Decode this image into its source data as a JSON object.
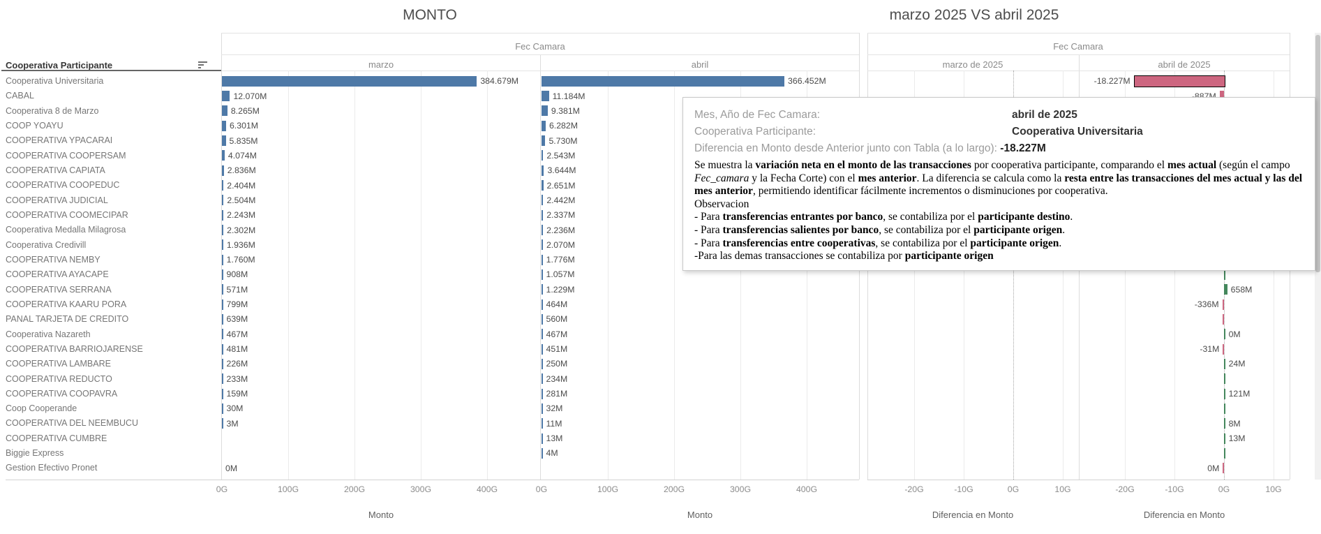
{
  "titles": {
    "left": "MONTO",
    "right": "marzo 2025 VS abril 2025"
  },
  "left_panel": {
    "group_header": "Fec Camara",
    "row_header": "Cooperativa Participante",
    "columns": [
      "marzo",
      "abril"
    ],
    "axis": {
      "ticks": [
        "0G",
        "100G",
        "200G",
        "300G",
        "400G"
      ],
      "title": "Monto"
    }
  },
  "right_panel": {
    "group_header": "Fec Camara",
    "columns": [
      "marzo de 2025",
      "abril de 2025"
    ],
    "axis": {
      "ticks": [
        "-20G",
        "-10G",
        "0G",
        "10G"
      ],
      "title": "Diferencia en Monto"
    }
  },
  "colors": {
    "bar_blue": "#4e79a7",
    "diff_positive_green": "#44875c",
    "diff_negative_pink": "#cd6680",
    "selected_border": "#000000"
  },
  "chart_data": {
    "type": "bar",
    "units": "G (thousands of millions), labels shown in M with dot as thousands separator",
    "left_axis_range_G": [
      0,
      480
    ],
    "diff_axis_range_G": [
      -30,
      13
    ],
    "rows": [
      {
        "name": "Cooperativa Universitaria",
        "marzo": 384.679,
        "marzo_label": "384.679M",
        "abril": 366.452,
        "abril_label": "366.452M",
        "diff": -18.227,
        "diff_label": "-18.227M",
        "diff_dir": "down",
        "selected": true
      },
      {
        "name": "CABAL",
        "marzo": 12.07,
        "marzo_label": "12.070M",
        "abril": 11.184,
        "abril_label": "11.184M",
        "diff": -0.887,
        "diff_label": "-887M",
        "diff_dir": "down"
      },
      {
        "name": "Cooperativa 8 de Marzo",
        "marzo": 8.265,
        "marzo_label": "8.265M",
        "abril": 9.381,
        "abril_label": "9.381M",
        "diff": null
      },
      {
        "name": "COOP YOAYU",
        "marzo": 6.301,
        "marzo_label": "6.301M",
        "abril": 6.282,
        "abril_label": "6.282M",
        "diff": null
      },
      {
        "name": "COOPERATIVA YPACARAI",
        "marzo": 5.835,
        "marzo_label": "5.835M",
        "abril": 5.73,
        "abril_label": "5.730M",
        "diff": null
      },
      {
        "name": "COOPERATIVA COOPERSAM",
        "marzo": 4.074,
        "marzo_label": "4.074M",
        "abril": 2.543,
        "abril_label": "2.543M",
        "diff": null
      },
      {
        "name": "COOPERATIVA CAPIATA",
        "marzo": 2.836,
        "marzo_label": "2.836M",
        "abril": 3.644,
        "abril_label": "3.644M",
        "diff": null
      },
      {
        "name": "COOPERATIVA COOPEDUC",
        "marzo": 2.404,
        "marzo_label": "2.404M",
        "abril": 2.651,
        "abril_label": "2.651M",
        "diff": null
      },
      {
        "name": "COOPERATIVA JUDICIAL",
        "marzo": 2.504,
        "marzo_label": "2.504M",
        "abril": 2.442,
        "abril_label": "2.442M",
        "diff": null
      },
      {
        "name": "COOPERATIVA COOMECIPAR",
        "marzo": 2.243,
        "marzo_label": "2.243M",
        "abril": 2.337,
        "abril_label": "2.337M",
        "diff": null
      },
      {
        "name": "Cooperativa Medalla Milagrosa",
        "marzo": 2.302,
        "marzo_label": "2.302M",
        "abril": 2.236,
        "abril_label": "2.236M",
        "diff": null
      },
      {
        "name": "Cooperativa Credivill",
        "marzo": 1.936,
        "marzo_label": "1.936M",
        "abril": 2.07,
        "abril_label": "2.070M",
        "diff": null
      },
      {
        "name": "COOPERATIVA NEMBY",
        "marzo": 1.76,
        "marzo_label": "1.760M",
        "abril": 1.776,
        "abril_label": "1.776M",
        "diff": null
      },
      {
        "name": "COOPERATIVA AYACAPE",
        "marzo": 0.908,
        "marzo_label": "908M",
        "abril": 1.057,
        "abril_label": "1.057M",
        "diff": 0.149,
        "diff_label": null,
        "diff_dir": "up"
      },
      {
        "name": "COOPERATIVA SERRANA",
        "marzo": 0.571,
        "marzo_label": "571M",
        "abril": 1.229,
        "abril_label": "1.229M",
        "diff": 0.658,
        "diff_label": "658M",
        "diff_dir": "up"
      },
      {
        "name": "COOPERATIVA KAARU PORA",
        "marzo": 0.799,
        "marzo_label": "799M",
        "abril": 0.464,
        "abril_label": "464M",
        "diff": -0.336,
        "diff_label": "-336M",
        "diff_dir": "down"
      },
      {
        "name": "PANAL TARJETA DE CREDITO",
        "marzo": 0.639,
        "marzo_label": "639M",
        "abril": 0.56,
        "abril_label": "560M",
        "diff": -0.079,
        "diff_label": null,
        "diff_dir": "down"
      },
      {
        "name": "Cooperativa Nazareth",
        "marzo": 0.467,
        "marzo_label": "467M",
        "abril": 0.467,
        "abril_label": "467M",
        "diff": 0,
        "diff_label": "0M",
        "diff_dir": "up"
      },
      {
        "name": "COOPERATIVA BARRIOJARENSE",
        "marzo": 0.481,
        "marzo_label": "481M",
        "abril": 0.451,
        "abril_label": "451M",
        "diff": -0.031,
        "diff_label": "-31M",
        "diff_dir": "down"
      },
      {
        "name": "COOPERATIVA LAMBARE",
        "marzo": 0.226,
        "marzo_label": "226M",
        "abril": 0.25,
        "abril_label": "250M",
        "diff": 0.024,
        "diff_label": "24M",
        "diff_dir": "up"
      },
      {
        "name": "COOPERATIVA REDUCTO",
        "marzo": 0.233,
        "marzo_label": "233M",
        "abril": 0.234,
        "abril_label": "234M",
        "diff": 0.001,
        "diff_label": null,
        "diff_dir": "up"
      },
      {
        "name": "COOPERATIVA COOPAVRA",
        "marzo": 0.159,
        "marzo_label": "159M",
        "abril": 0.281,
        "abril_label": "281M",
        "diff": 0.121,
        "diff_label": "121M",
        "diff_dir": "up"
      },
      {
        "name": "Coop Cooperande",
        "marzo": 0.03,
        "marzo_label": "30M",
        "abril": 0.032,
        "abril_label": "32M",
        "diff": 0.002,
        "diff_label": null,
        "diff_dir": "up"
      },
      {
        "name": "COOPERATIVA DEL NEEMBUCU",
        "marzo": 0.003,
        "marzo_label": "3M",
        "abril": 0.011,
        "abril_label": "11M",
        "diff": 0.008,
        "diff_label": "8M",
        "diff_dir": "up"
      },
      {
        "name": "COOPERATIVA CUMBRE",
        "marzo": null,
        "marzo_label": null,
        "abril": 0.013,
        "abril_label": "13M",
        "diff": 0.013,
        "diff_label": "13M",
        "diff_dir": "up"
      },
      {
        "name": "Biggie Express",
        "marzo": null,
        "marzo_label": null,
        "abril": 0.004,
        "abril_label": "4M",
        "diff": 0.004,
        "diff_label": null,
        "diff_dir": "up"
      },
      {
        "name": "Gestion Efectivo Pronet",
        "marzo": 0,
        "marzo_label": "0M",
        "abril": null,
        "abril_label": null,
        "diff": 0,
        "diff_label": "0M",
        "diff_dir": "down"
      }
    ]
  },
  "tooltip": {
    "fields": [
      {
        "label": "Mes, Año de Fec Camara:",
        "value": "abril de 2025"
      },
      {
        "label": "Cooperativa Participante:",
        "value": "Cooperativa Universitaria"
      },
      {
        "label": "Diferencia en Monto desde Anterior junto con Tabla (a lo largo):",
        "value": "-18.227M"
      }
    ],
    "body": [
      [
        {
          "t": "Se muestra la "
        },
        {
          "t": "variación neta en el monto de las transacciones",
          "b": true
        },
        {
          "t": " por cooperativa participante, comparando el "
        },
        {
          "t": "mes actual",
          "b": true
        },
        {
          "t": " (según el campo "
        },
        {
          "t": "Fec_camara",
          "i": true
        },
        {
          "t": " y la Fecha Corte) con el "
        },
        {
          "t": "mes anterior",
          "b": true
        },
        {
          "t": ". La diferencia se calcula como la "
        },
        {
          "t": "resta entre las transacciones del mes actual y las del mes anterior",
          "b": true
        },
        {
          "t": ", permitiendo identificar fácilmente incrementos o disminuciones por cooperativa."
        }
      ],
      [
        {
          "t": "Observacion"
        }
      ],
      [
        {
          "t": "- Para "
        },
        {
          "t": "transferencias entrantes por banco",
          "b": true
        },
        {
          "t": ",   se contabiliza por el "
        },
        {
          "t": "participante destino",
          "b": true
        },
        {
          "t": "."
        }
      ],
      [
        {
          "t": "- Para "
        },
        {
          "t": "transferencias salientes por banco",
          "b": true
        },
        {
          "t": ", se contabiliza por el "
        },
        {
          "t": "participante origen",
          "b": true
        },
        {
          "t": "."
        }
      ],
      [
        {
          "t": "- Para "
        },
        {
          "t": "transferencias entre cooperativas",
          "b": true
        },
        {
          "t": ",  se contabiliza por el "
        },
        {
          "t": "participante origen",
          "b": true
        },
        {
          "t": "."
        }
      ],
      [
        {
          "t": "-Para las demas transacciones se contabiliza por "
        },
        {
          "t": "participante origen",
          "b": true
        }
      ]
    ]
  }
}
